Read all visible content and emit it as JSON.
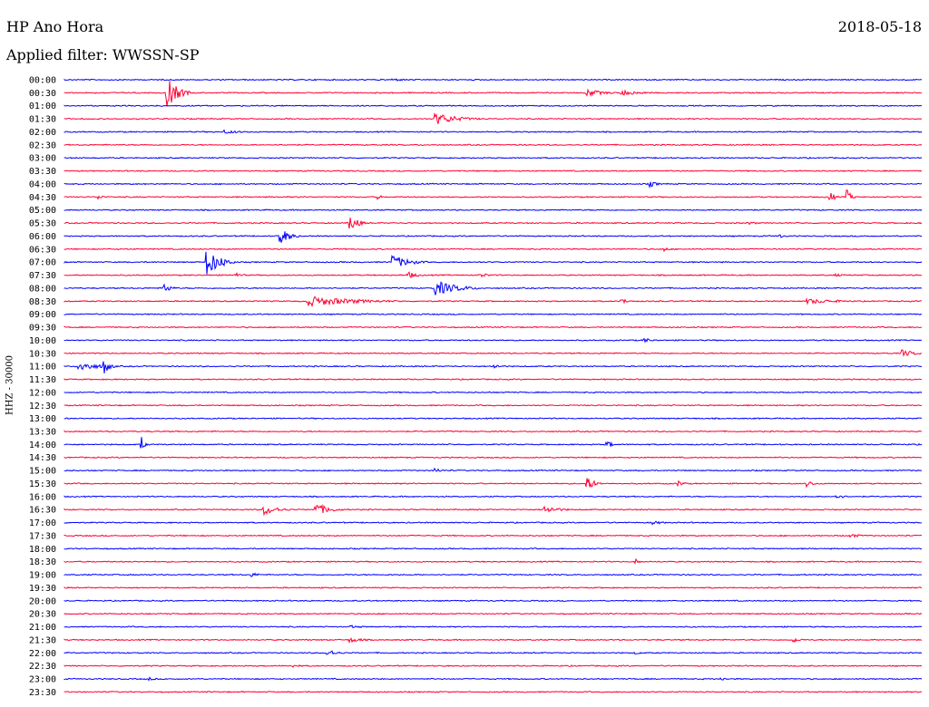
{
  "header": {
    "station": "HP Ano Hora",
    "date": "2018-05-18",
    "filter_label": "Applied filter:",
    "filter_value": "WWSSN-SP"
  },
  "channel": "HHZ - 30000",
  "colors": {
    "odd": "#0000ff",
    "even": "#ff0033"
  },
  "chart_data": {
    "type": "line",
    "title": "",
    "xlabel": "",
    "ylabel": "HHZ - 30000",
    "row_labels": [
      "00:00",
      "00:30",
      "01:00",
      "01:30",
      "02:00",
      "02:30",
      "03:00",
      "03:30",
      "04:00",
      "04:30",
      "05:00",
      "05:30",
      "06:00",
      "06:30",
      "07:00",
      "07:30",
      "08:00",
      "08:30",
      "09:00",
      "09:30",
      "10:00",
      "10:30",
      "11:00",
      "11:30",
      "12:00",
      "12:30",
      "13:00",
      "13:30",
      "14:00",
      "14:30",
      "15:00",
      "15:30",
      "16:00",
      "16:30",
      "17:00",
      "17:30",
      "18:00",
      "18:30",
      "19:00",
      "19:30",
      "20:00",
      "20:30",
      "21:00",
      "21:30",
      "22:00",
      "22:30",
      "23:00",
      "23:30"
    ],
    "events": [
      {
        "row": "00:00",
        "minute": 11.5,
        "amp": 0.25,
        "dur": 1.5
      },
      {
        "row": "00:30",
        "minute": 3.6,
        "amp": 2.8,
        "dur": 0.8
      },
      {
        "row": "00:30",
        "minute": 18.3,
        "amp": 0.7,
        "dur": 1.2
      },
      {
        "row": "00:30",
        "minute": 19.5,
        "amp": 0.5,
        "dur": 1.5
      },
      {
        "row": "01:30",
        "minute": 13.0,
        "amp": 1.1,
        "dur": 1.6
      },
      {
        "row": "02:00",
        "minute": 5.6,
        "amp": 0.35,
        "dur": 1.4
      },
      {
        "row": "04:00",
        "minute": 20.5,
        "amp": 0.6,
        "dur": 0.5
      },
      {
        "row": "04:30",
        "minute": 1.2,
        "amp": 0.5,
        "dur": 0.4
      },
      {
        "row": "04:30",
        "minute": 11.0,
        "amp": 0.4,
        "dur": 0.3
      },
      {
        "row": "04:30",
        "minute": 26.8,
        "amp": 1.2,
        "dur": 0.3
      },
      {
        "row": "04:30",
        "minute": 27.4,
        "amp": 1.3,
        "dur": 0.3
      },
      {
        "row": "05:30",
        "minute": 10.0,
        "amp": 1.6,
        "dur": 0.6
      },
      {
        "row": "05:30",
        "minute": 24.0,
        "amp": 0.3,
        "dur": 0.6
      },
      {
        "row": "06:00",
        "minute": 7.5,
        "amp": 1.9,
        "dur": 0.7
      },
      {
        "row": "06:00",
        "minute": 25.0,
        "amp": 0.5,
        "dur": 0.3
      },
      {
        "row": "06:30",
        "minute": 21.0,
        "amp": 0.4,
        "dur": 0.4
      },
      {
        "row": "07:00",
        "minute": 5.0,
        "amp": 2.5,
        "dur": 1.0
      },
      {
        "row": "07:00",
        "minute": 11.5,
        "amp": 1.3,
        "dur": 1.2
      },
      {
        "row": "07:30",
        "minute": 6.0,
        "amp": 0.4,
        "dur": 0.6
      },
      {
        "row": "07:30",
        "minute": 12.0,
        "amp": 0.7,
        "dur": 0.7
      },
      {
        "row": "07:30",
        "minute": 14.5,
        "amp": 0.6,
        "dur": 0.6
      },
      {
        "row": "07:30",
        "minute": 27.0,
        "amp": 0.3,
        "dur": 0.6
      },
      {
        "row": "08:00",
        "minute": 3.5,
        "amp": 0.9,
        "dur": 0.5
      },
      {
        "row": "08:00",
        "minute": 13.0,
        "amp": 1.4,
        "dur": 1.6
      },
      {
        "row": "08:30",
        "minute": 8.5,
        "amp": 1.0,
        "dur": 3.5
      },
      {
        "row": "08:30",
        "minute": 19.5,
        "amp": 0.5,
        "dur": 0.6
      },
      {
        "row": "08:30",
        "minute": 26.0,
        "amp": 0.5,
        "dur": 2.5
      },
      {
        "row": "10:00",
        "minute": 20.3,
        "amp": 0.5,
        "dur": 0.5
      },
      {
        "row": "10:30",
        "minute": 29.3,
        "amp": 0.7,
        "dur": 1.0
      },
      {
        "row": "11:00",
        "minute": 0.5,
        "amp": 0.9,
        "dur": 1.5
      },
      {
        "row": "11:00",
        "minute": 1.4,
        "amp": 1.5,
        "dur": 0.4
      },
      {
        "row": "11:00",
        "minute": 15.0,
        "amp": 0.5,
        "dur": 0.6
      },
      {
        "row": "14:00",
        "minute": 2.7,
        "amp": 1.5,
        "dur": 0.2
      },
      {
        "row": "14:00",
        "minute": 19.0,
        "amp": 0.9,
        "dur": 0.3
      },
      {
        "row": "15:00",
        "minute": 13.0,
        "amp": 0.5,
        "dur": 0.5
      },
      {
        "row": "15:30",
        "minute": 18.3,
        "amp": 1.4,
        "dur": 0.5
      },
      {
        "row": "15:30",
        "minute": 21.5,
        "amp": 0.6,
        "dur": 0.4
      },
      {
        "row": "15:30",
        "minute": 26.0,
        "amp": 0.6,
        "dur": 0.5
      },
      {
        "row": "16:00",
        "minute": 27.0,
        "amp": 0.5,
        "dur": 0.6
      },
      {
        "row": "16:30",
        "minute": 7.0,
        "amp": 1.0,
        "dur": 1.0
      },
      {
        "row": "16:30",
        "minute": 8.8,
        "amp": 1.2,
        "dur": 1.0
      },
      {
        "row": "16:30",
        "minute": 16.8,
        "amp": 0.7,
        "dur": 1.2
      },
      {
        "row": "17:00",
        "minute": 20.5,
        "amp": 0.4,
        "dur": 1.0
      },
      {
        "row": "17:30",
        "minute": 27.5,
        "amp": 0.4,
        "dur": 0.8
      },
      {
        "row": "18:30",
        "minute": 20.0,
        "amp": 0.5,
        "dur": 0.3
      },
      {
        "row": "19:00",
        "minute": 6.5,
        "amp": 0.5,
        "dur": 0.6
      },
      {
        "row": "21:00",
        "minute": 10.0,
        "amp": 0.3,
        "dur": 1.2
      },
      {
        "row": "21:30",
        "minute": 10.0,
        "amp": 0.5,
        "dur": 1.0
      },
      {
        "row": "21:30",
        "minute": 25.5,
        "amp": 0.6,
        "dur": 0.5
      },
      {
        "row": "22:00",
        "minute": 9.2,
        "amp": 0.7,
        "dur": 0.7
      },
      {
        "row": "22:00",
        "minute": 20.0,
        "amp": 0.3,
        "dur": 0.6
      },
      {
        "row": "22:30",
        "minute": 8.0,
        "amp": 0.3,
        "dur": 0.7
      },
      {
        "row": "23:00",
        "minute": 3.0,
        "amp": 0.3,
        "dur": 0.5
      },
      {
        "row": "23:00",
        "minute": 23.0,
        "amp": 0.3,
        "dur": 0.5
      }
    ],
    "grid": false,
    "legend": "none"
  }
}
